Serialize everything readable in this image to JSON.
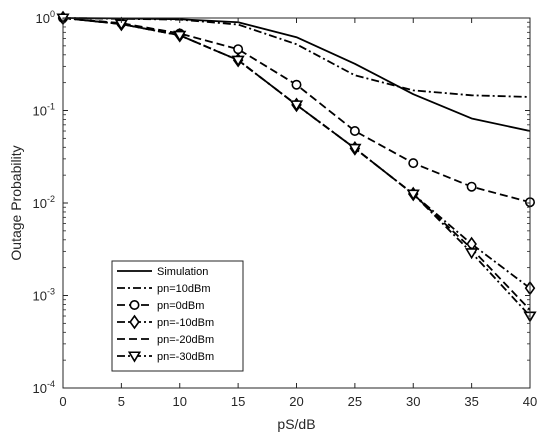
{
  "chart_data": {
    "type": "line",
    "xlabel": "pS/dB",
    "ylabel": "Outage Probability",
    "xlim": [
      0,
      40
    ],
    "ylim": [
      0.0001,
      1
    ],
    "yscale": "log",
    "xticks": [
      0,
      5,
      10,
      15,
      20,
      25,
      30,
      35,
      40
    ],
    "yticks": [
      {
        "base": "10",
        "exp": "0",
        "value": 1
      },
      {
        "base": "10",
        "exp": "-1",
        "value": 0.1
      },
      {
        "base": "10",
        "exp": "-2",
        "value": 0.01
      },
      {
        "base": "10",
        "exp": "-3",
        "value": 0.001
      },
      {
        "base": "10",
        "exp": "-4",
        "value": 0.0001
      }
    ],
    "grid": false,
    "legend_position": "bottom-left",
    "series": [
      {
        "name": "Simulation",
        "style": "solid",
        "marker": "none",
        "x": [
          0,
          5,
          10,
          15,
          20,
          25,
          30,
          35,
          40
        ],
        "y": [
          1.0,
          0.99,
          0.97,
          0.9,
          0.62,
          0.32,
          0.15,
          0.082,
          0.06
        ]
      },
      {
        "name": "pn=10dBm",
        "style": "dashdot",
        "marker": "none",
        "x": [
          0,
          5,
          10,
          15,
          20,
          25,
          30,
          35,
          40
        ],
        "y": [
          1.0,
          0.98,
          0.96,
          0.85,
          0.52,
          0.24,
          0.165,
          0.146,
          0.14
        ]
      },
      {
        "name": "pn=0dBm",
        "style": "dashed",
        "marker": "circle",
        "x": [
          0,
          5,
          10,
          15,
          20,
          25,
          30,
          35,
          40
        ],
        "y": [
          1.0,
          0.88,
          0.68,
          0.46,
          0.19,
          0.06,
          0.027,
          0.015,
          0.0102
        ]
      },
      {
        "name": "pn=-10dBm",
        "style": "dashdot",
        "marker": "diamond",
        "x": [
          0,
          5,
          10,
          15,
          20,
          25,
          30,
          35,
          40
        ],
        "y": [
          1.0,
          0.86,
          0.65,
          0.35,
          0.115,
          0.039,
          0.0125,
          0.0036,
          0.0012
        ]
      },
      {
        "name": "pn=-20dBm",
        "style": "dashed",
        "marker": "none",
        "x": [
          0,
          5,
          10,
          15,
          20,
          25,
          30,
          35,
          40
        ],
        "y": [
          1.0,
          0.86,
          0.65,
          0.35,
          0.115,
          0.039,
          0.0125,
          0.0032,
          0.0007
        ]
      },
      {
        "name": "pn=-30dBm",
        "style": "dashdot",
        "marker": "triangle-down",
        "x": [
          0,
          5,
          10,
          15,
          20,
          25,
          30,
          35,
          40
        ],
        "y": [
          1.0,
          0.86,
          0.65,
          0.35,
          0.115,
          0.039,
          0.0125,
          0.0029,
          0.0006
        ]
      }
    ]
  }
}
